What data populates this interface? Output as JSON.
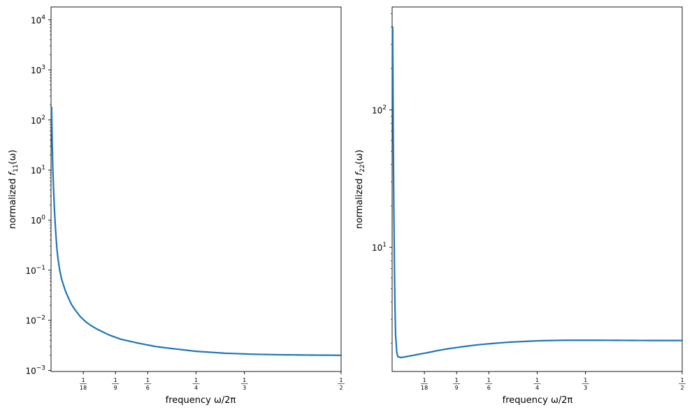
{
  "chart_data": [
    {
      "type": "line",
      "xlabel": "frequency ω/2π",
      "ylabel": "normalized f₁₁(ω)",
      "ylabel_prefix": "normalized ",
      "ylabel_f": "f",
      "ylabel_sub": "11",
      "ylabel_suffix": "(ω)",
      "yscale": "log",
      "xlim": [
        0,
        0.5
      ],
      "ylim": [
        0.00095,
        18000
      ],
      "grid": false,
      "x_ticks": [
        {
          "value": 0.05556,
          "num": "1",
          "den": "18"
        },
        {
          "value": 0.11111,
          "num": "1",
          "den": "9"
        },
        {
          "value": 0.16667,
          "num": "1",
          "den": "6"
        },
        {
          "value": 0.25,
          "num": "1",
          "den": "4"
        },
        {
          "value": 0.33333,
          "num": "1",
          "den": "3"
        },
        {
          "value": 0.5,
          "num": "1",
          "den": "2"
        }
      ],
      "y_ticks": [
        {
          "value": 0.001,
          "base": "10",
          "exp": "−3"
        },
        {
          "value": 0.01,
          "base": "10",
          "exp": "−2"
        },
        {
          "value": 0.1,
          "base": "10",
          "exp": "−1"
        },
        {
          "value": 1,
          "base": "10",
          "exp": "0"
        },
        {
          "value": 10,
          "base": "10",
          "exp": "1"
        },
        {
          "value": 100,
          "base": "10",
          "exp": "2"
        },
        {
          "value": 1000,
          "base": "10",
          "exp": "3"
        },
        {
          "value": 10000,
          "base": "10",
          "exp": "4"
        }
      ],
      "series": [
        {
          "color": "#1f77b4",
          "x": [
            0.001,
            0.0015,
            0.002,
            0.003,
            0.004,
            0.005,
            0.006,
            0.008,
            0.01,
            0.012,
            0.015,
            0.018,
            0.02,
            0.025,
            0.03,
            0.035,
            0.04,
            0.05,
            0.06,
            0.07,
            0.08,
            0.1,
            0.12,
            0.15,
            0.18,
            0.2,
            0.25,
            0.3,
            0.35,
            0.4,
            0.45,
            0.5
          ],
          "y": [
            180,
            75,
            35,
            12,
            5.5,
            2.8,
            1.5,
            0.6,
            0.28,
            0.17,
            0.1,
            0.068,
            0.057,
            0.038,
            0.028,
            0.021,
            0.017,
            0.012,
            0.0093,
            0.0077,
            0.0066,
            0.0051,
            0.0042,
            0.0035,
            0.003,
            0.0028,
            0.0024,
            0.0022,
            0.0021,
            0.00205,
            0.00202,
            0.002
          ]
        }
      ]
    },
    {
      "type": "line",
      "xlabel": "frequency ω/2π",
      "ylabel": "normalized f₂₂(ω)",
      "ylabel_prefix": "normalized ",
      "ylabel_f": "f",
      "ylabel_sub": "22",
      "ylabel_suffix": "(ω)",
      "yscale": "log",
      "xlim": [
        0,
        0.5
      ],
      "ylim": [
        1.25,
        560
      ],
      "grid": false,
      "x_ticks": [
        {
          "value": 0.05556,
          "num": "1",
          "den": "18"
        },
        {
          "value": 0.11111,
          "num": "1",
          "den": "9"
        },
        {
          "value": 0.16667,
          "num": "1",
          "den": "6"
        },
        {
          "value": 0.25,
          "num": "1",
          "den": "4"
        },
        {
          "value": 0.33333,
          "num": "1",
          "den": "3"
        },
        {
          "value": 0.5,
          "num": "1",
          "den": "2"
        }
      ],
      "y_ticks": [
        {
          "value": 10,
          "base": "10",
          "exp": "1"
        },
        {
          "value": 100,
          "base": "10",
          "exp": "2"
        }
      ],
      "series": [
        {
          "color": "#1f77b4",
          "x": [
            0.001,
            0.0015,
            0.002,
            0.003,
            0.004,
            0.005,
            0.006,
            0.008,
            0.01,
            0.015,
            0.02,
            0.03,
            0.04,
            0.06,
            0.08,
            0.1,
            0.12,
            0.15,
            0.18,
            0.2,
            0.25,
            0.3,
            0.35,
            0.4,
            0.45,
            0.5
          ],
          "y": [
            400,
            150,
            60,
            18,
            7,
            3.5,
            2.3,
            1.72,
            1.6,
            1.58,
            1.59,
            1.62,
            1.65,
            1.71,
            1.78,
            1.84,
            1.89,
            1.96,
            2.01,
            2.04,
            2.09,
            2.11,
            2.11,
            2.105,
            2.1,
            2.1
          ]
        }
      ]
    }
  ]
}
